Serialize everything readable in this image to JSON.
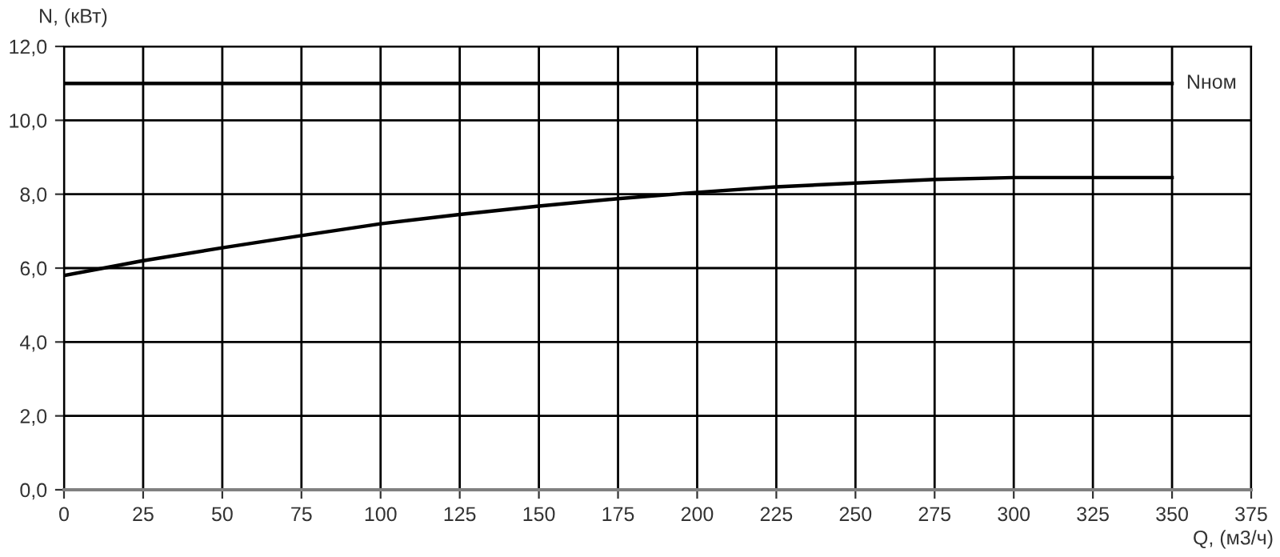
{
  "chart_data": {
    "type": "line",
    "xlabel": "Q, (м3/ч)",
    "ylabel": "N, (кВт)",
    "x": [
      0,
      25,
      50,
      75,
      100,
      125,
      150,
      175,
      200,
      225,
      250,
      275,
      300,
      325,
      350
    ],
    "series": [
      {
        "color": "#000000",
        "values": [
          5.8,
          6.2,
          6.55,
          6.88,
          7.2,
          7.45,
          7.68,
          7.88,
          8.05,
          8.2,
          8.3,
          8.4,
          8.45,
          8.45,
          8.45
        ]
      }
    ],
    "xlim": [
      0,
      375
    ],
    "xticks": [
      0,
      25,
      50,
      75,
      100,
      125,
      150,
      175,
      200,
      225,
      250,
      275,
      300,
      325,
      350,
      375
    ],
    "ylim": [
      0,
      12
    ],
    "yticks": [
      {
        "value": 0,
        "label": "0,0"
      },
      {
        "value": 2,
        "label": "2,0"
      },
      {
        "value": 4,
        "label": "4,0"
      },
      {
        "value": 6,
        "label": "6,0"
      },
      {
        "value": 8,
        "label": "8,0"
      },
      {
        "value": 10,
        "label": "10,0"
      },
      {
        "value": 12,
        "label": "12,0"
      }
    ],
    "ref_lines": [
      {
        "axis": "y",
        "value": 11,
        "label": "Nном",
        "color": "#000000"
      }
    ],
    "grid": true,
    "legend": false,
    "marker": "none",
    "line_style": "solid"
  }
}
